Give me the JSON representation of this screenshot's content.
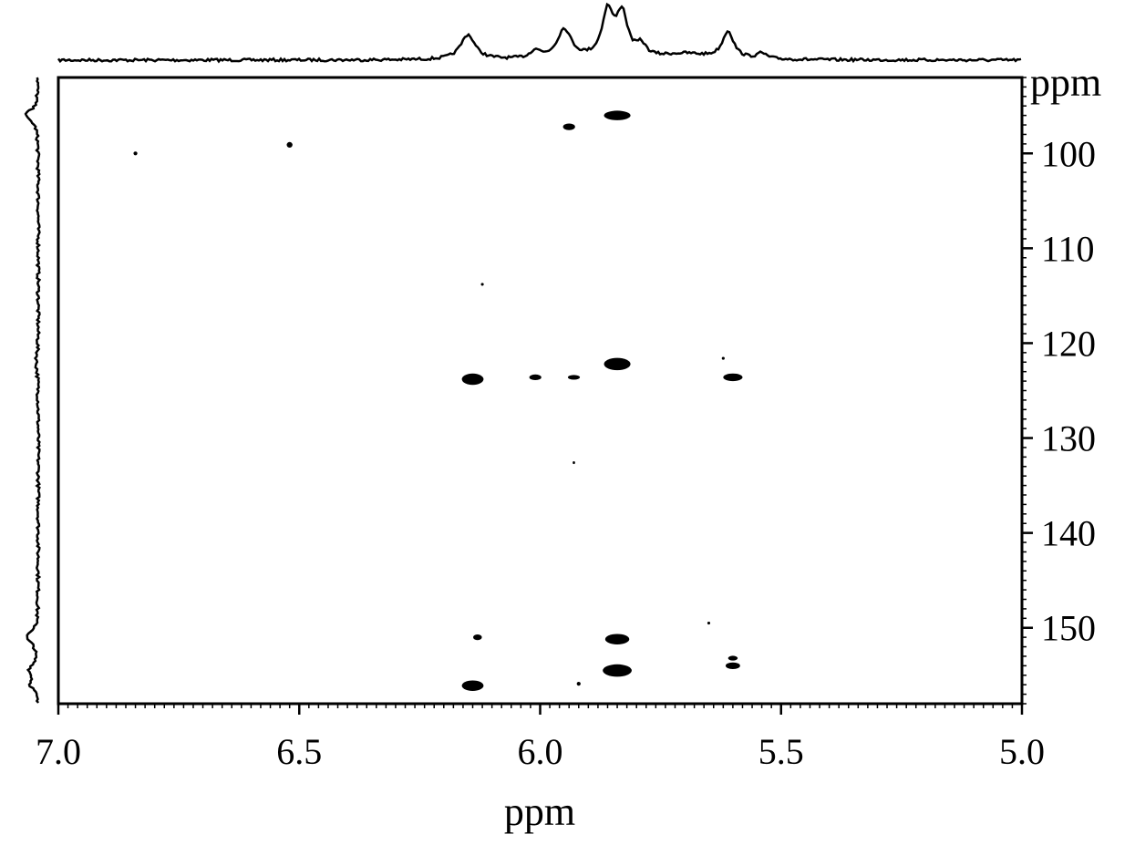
{
  "chart_data": {
    "type": "scatter",
    "subtype": "2D NMR correlation spectrum with 1D projections",
    "xlabel": "ppm",
    "ylabel": "ppm",
    "xlim": [
      7.0,
      5.0
    ],
    "ylim": [
      92,
      158
    ],
    "x_reversed": true,
    "y_increases_downward": true,
    "x_ticks": [
      7.0,
      6.5,
      6.0,
      5.5,
      5.0
    ],
    "x_tick_labels": [
      "7.0",
      "6.5",
      "6.0",
      "5.5",
      "5.0"
    ],
    "y_ticks": [
      100,
      110,
      120,
      130,
      140,
      150
    ],
    "y_tick_labels": [
      "100",
      "110",
      "120",
      "130",
      "140",
      "150"
    ],
    "grid": false,
    "legend": "none",
    "color": "#000000",
    "points": [
      {
        "x": 5.84,
        "y": 96.0,
        "w": 0.055,
        "h": 1.0
      },
      {
        "x": 5.94,
        "y": 97.2,
        "w": 0.025,
        "h": 0.7
      },
      {
        "x": 6.84,
        "y": 100.0,
        "w": 0.008,
        "h": 0.4
      },
      {
        "x": 6.52,
        "y": 99.1,
        "w": 0.012,
        "h": 0.6
      },
      {
        "x": 6.12,
        "y": 113.8,
        "w": 0.006,
        "h": 0.3
      },
      {
        "x": 5.84,
        "y": 122.2,
        "w": 0.055,
        "h": 1.3
      },
      {
        "x": 6.14,
        "y": 123.8,
        "w": 0.045,
        "h": 1.2
      },
      {
        "x": 6.01,
        "y": 123.6,
        "w": 0.025,
        "h": 0.6
      },
      {
        "x": 5.93,
        "y": 123.6,
        "w": 0.025,
        "h": 0.5
      },
      {
        "x": 5.6,
        "y": 123.6,
        "w": 0.04,
        "h": 0.8
      },
      {
        "x": 5.62,
        "y": 121.6,
        "w": 0.006,
        "h": 0.3
      },
      {
        "x": 5.93,
        "y": 132.6,
        "w": 0.005,
        "h": 0.3
      },
      {
        "x": 6.13,
        "y": 151.0,
        "w": 0.018,
        "h": 0.6
      },
      {
        "x": 5.84,
        "y": 151.2,
        "w": 0.05,
        "h": 1.1
      },
      {
        "x": 5.65,
        "y": 149.5,
        "w": 0.006,
        "h": 0.3
      },
      {
        "x": 5.84,
        "y": 154.5,
        "w": 0.06,
        "h": 1.3
      },
      {
        "x": 5.6,
        "y": 153.2,
        "w": 0.02,
        "h": 0.5
      },
      {
        "x": 5.6,
        "y": 154.0,
        "w": 0.03,
        "h": 0.7
      },
      {
        "x": 5.92,
        "y": 155.9,
        "w": 0.008,
        "h": 0.4
      },
      {
        "x": 6.14,
        "y": 156.1,
        "w": 0.045,
        "h": 1.1
      }
    ],
    "top_projection_peaks": [
      {
        "x": 6.15,
        "height": 0.55,
        "width": 0.018
      },
      {
        "x": 6.01,
        "height": 0.18,
        "width": 0.012
      },
      {
        "x": 5.95,
        "height": 0.65,
        "width": 0.018
      },
      {
        "x": 5.86,
        "height": 1.0,
        "width": 0.014
      },
      {
        "x": 5.83,
        "height": 0.95,
        "width": 0.014
      },
      {
        "x": 5.79,
        "height": 0.25,
        "width": 0.012
      },
      {
        "x": 5.7,
        "height": 0.12,
        "width": 0.06
      },
      {
        "x": 5.61,
        "height": 0.6,
        "width": 0.014
      },
      {
        "x": 5.54,
        "height": 0.12,
        "width": 0.012
      }
    ],
    "left_projection_peaks": [
      {
        "y": 96.0,
        "height": 1.0,
        "width": 0.7
      },
      {
        "y": 122.0,
        "height": 0.15,
        "width": 1.2
      },
      {
        "y": 151.0,
        "height": 0.9,
        "width": 0.7
      },
      {
        "y": 154.5,
        "height": 0.6,
        "width": 0.7
      },
      {
        "y": 156.0,
        "height": 0.5,
        "width": 0.6
      }
    ]
  }
}
